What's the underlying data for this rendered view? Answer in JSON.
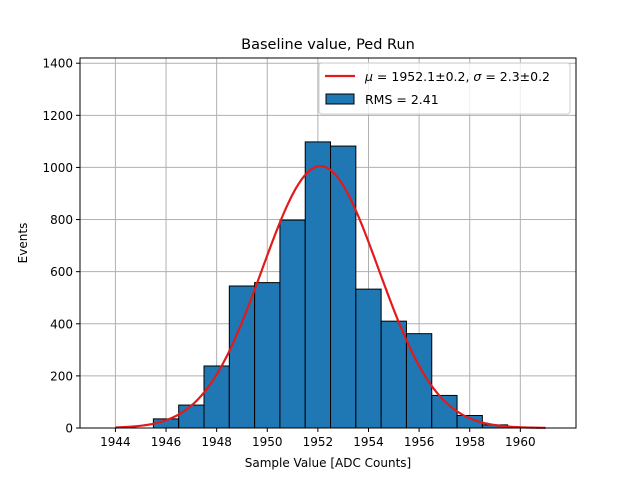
{
  "chart_data": {
    "type": "bar",
    "title": "Baseline value, Ped Run",
    "xlabel": "Sample Value [ADC Counts]",
    "ylabel": "Events",
    "xlim": [
      1942.6,
      1962.2
    ],
    "ylim": [
      0,
      1420
    ],
    "xticks": [
      1944,
      1946,
      1948,
      1950,
      1952,
      1954,
      1956,
      1958,
      1960
    ],
    "yticks": [
      0,
      200,
      400,
      600,
      800,
      1000,
      1200,
      1400
    ],
    "grid": true,
    "legend_position": "top-right",
    "histogram": {
      "name": "RMS = 2.41",
      "color": "#1f77b4",
      "edgecolor": "#000000",
      "bins": [
        {
          "x0": 1945.5,
          "x1": 1946.5,
          "count": 35
        },
        {
          "x0": 1946.5,
          "x1": 1947.5,
          "count": 88
        },
        {
          "x0": 1947.5,
          "x1": 1948.5,
          "count": 238
        },
        {
          "x0": 1948.5,
          "x1": 1949.5,
          "count": 545
        },
        {
          "x0": 1949.5,
          "x1": 1950.5,
          "count": 558
        },
        {
          "x0": 1950.5,
          "x1": 1951.5,
          "count": 798
        },
        {
          "x0": 1951.5,
          "x1": 1952.5,
          "count": 1098
        },
        {
          "x0": 1952.5,
          "x1": 1953.5,
          "count": 1082
        },
        {
          "x0": 1953.5,
          "x1": 1954.5,
          "count": 533
        },
        {
          "x0": 1954.5,
          "x1": 1955.5,
          "count": 410
        },
        {
          "x0": 1955.5,
          "x1": 1956.5,
          "count": 362
        },
        {
          "x0": 1956.5,
          "x1": 1957.5,
          "count": 125
        },
        {
          "x0": 1957.5,
          "x1": 1958.5,
          "count": 48
        },
        {
          "x0": 1958.5,
          "x1": 1959.5,
          "count": 12
        }
      ]
    },
    "fit": {
      "name": "μ = 1952.1±0.2, σ = 2.3±0.2",
      "name_parts": {
        "mu_symbol": "μ",
        "mu_value": " = 1952.1±0.2, ",
        "sigma_symbol": "σ",
        "sigma_value": " = 2.3±0.2"
      },
      "color": "#e31a1c",
      "type": "gaussian",
      "mu": 1952.1,
      "sigma": 2.3,
      "amplitude": 1005,
      "x_range": [
        1944,
        1961
      ]
    }
  }
}
